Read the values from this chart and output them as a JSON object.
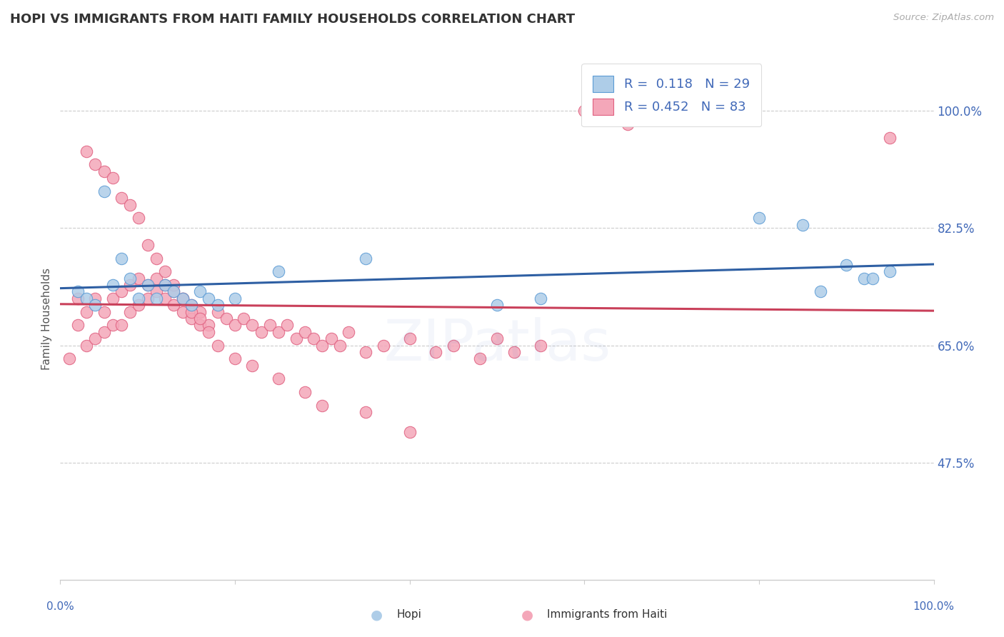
{
  "title": "HOPI VS IMMIGRANTS FROM HAITI FAMILY HOUSEHOLDS CORRELATION CHART",
  "source": "Source: ZipAtlas.com",
  "ylabel": "Family Households",
  "watermark": "ZIPatlas",
  "hopi_color": "#aecde8",
  "haiti_color": "#f4a7b9",
  "hopi_edge": "#5b9bd5",
  "haiti_edge": "#e06080",
  "trend_hopi_color": "#2e5fa3",
  "trend_haiti_color": "#c9405a",
  "background": "#ffffff",
  "grid_color": "#cccccc",
  "tick_color": "#4169b8",
  "title_color": "#333333",
  "R_hopi": 0.118,
  "N_hopi": 29,
  "R_haiti": 0.452,
  "N_haiti": 83,
  "xlim": [
    0,
    100
  ],
  "ylim": [
    30,
    108
  ],
  "ytick_vals": [
    47.5,
    65.0,
    82.5,
    100.0
  ],
  "hopi_x": [
    2,
    3,
    4,
    5,
    6,
    7,
    8,
    9,
    10,
    11,
    12,
    13,
    14,
    15,
    16,
    17,
    18,
    20,
    25,
    35,
    50,
    55,
    80,
    85,
    87,
    90,
    92,
    93,
    95
  ],
  "hopi_y": [
    73,
    72,
    71,
    88,
    74,
    78,
    75,
    72,
    74,
    72,
    74,
    73,
    72,
    71,
    73,
    72,
    71,
    72,
    76,
    78,
    71,
    72,
    84,
    83,
    73,
    77,
    75,
    75,
    76
  ],
  "haiti_x": [
    1,
    2,
    2,
    3,
    3,
    4,
    4,
    5,
    5,
    6,
    6,
    7,
    7,
    8,
    8,
    9,
    9,
    10,
    10,
    11,
    11,
    12,
    12,
    13,
    13,
    14,
    14,
    15,
    15,
    16,
    16,
    17,
    18,
    19,
    20,
    21,
    22,
    23,
    24,
    25,
    26,
    27,
    28,
    29,
    30,
    31,
    32,
    33,
    35,
    37,
    40,
    43,
    45,
    48,
    50,
    52,
    55,
    60,
    65,
    95,
    3,
    4,
    5,
    6,
    7,
    8,
    9,
    10,
    11,
    12,
    13,
    14,
    15,
    16,
    17,
    18,
    20,
    22,
    25,
    28,
    30,
    35,
    40
  ],
  "haiti_y": [
    63,
    68,
    72,
    65,
    70,
    66,
    72,
    67,
    70,
    68,
    72,
    68,
    73,
    70,
    74,
    71,
    75,
    72,
    74,
    73,
    75,
    72,
    74,
    71,
    73,
    70,
    72,
    69,
    71,
    68,
    70,
    68,
    70,
    69,
    68,
    69,
    68,
    67,
    68,
    67,
    68,
    66,
    67,
    66,
    65,
    66,
    65,
    67,
    64,
    65,
    66,
    64,
    65,
    63,
    66,
    64,
    65,
    100,
    98,
    96,
    94,
    92,
    91,
    90,
    87,
    86,
    84,
    80,
    78,
    76,
    74,
    72,
    70,
    69,
    67,
    65,
    63,
    62,
    60,
    58,
    56,
    55,
    52
  ]
}
